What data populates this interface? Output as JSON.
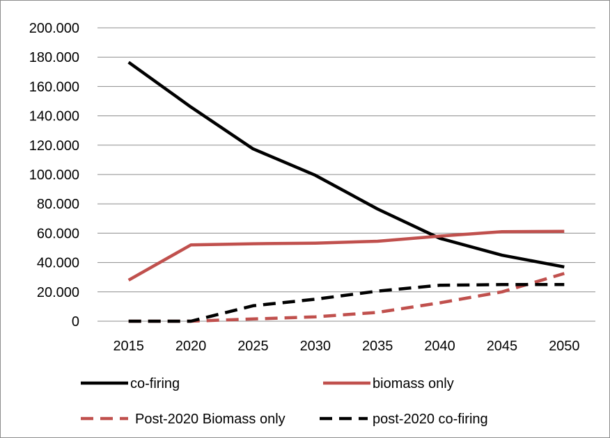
{
  "chart_data": {
    "type": "line",
    "title": "",
    "xlabel": "",
    "ylabel": "",
    "categories": [
      "2015",
      "2020",
      "2025",
      "2030",
      "2035",
      "2040",
      "2045",
      "2050"
    ],
    "ylim": [
      0,
      200000
    ],
    "yticks": [
      0,
      20000,
      40000,
      60000,
      80000,
      100000,
      120000,
      140000,
      160000,
      180000,
      200000
    ],
    "ytick_labels": [
      "0",
      "20.000",
      "40.000",
      "60.000",
      "80.000",
      "100.000",
      "120.000",
      "140.000",
      "160.000",
      "180.000",
      "200.000"
    ],
    "grid": true,
    "legend_position": "bottom",
    "series": [
      {
        "name": "co-firing",
        "color": "#000000",
        "dash": "solid",
        "values": [
          176500,
          146000,
          117500,
          99500,
          76500,
          56500,
          45000,
          37000
        ]
      },
      {
        "name": "biomass only",
        "color": "#c0504d",
        "dash": "solid",
        "values": [
          28000,
          52000,
          52800,
          53200,
          54500,
          58000,
          61000,
          61300
        ]
      },
      {
        "name": "Post-2020 Biomass only",
        "color": "#c0504d",
        "dash": "dashed",
        "values": [
          0,
          0,
          1500,
          3000,
          6000,
          12500,
          20000,
          32500
        ]
      },
      {
        "name": "post-2020 co-firing",
        "color": "#000000",
        "dash": "dashed",
        "values": [
          0,
          0,
          10500,
          15000,
          20500,
          24500,
          25000,
          25000
        ]
      }
    ]
  }
}
